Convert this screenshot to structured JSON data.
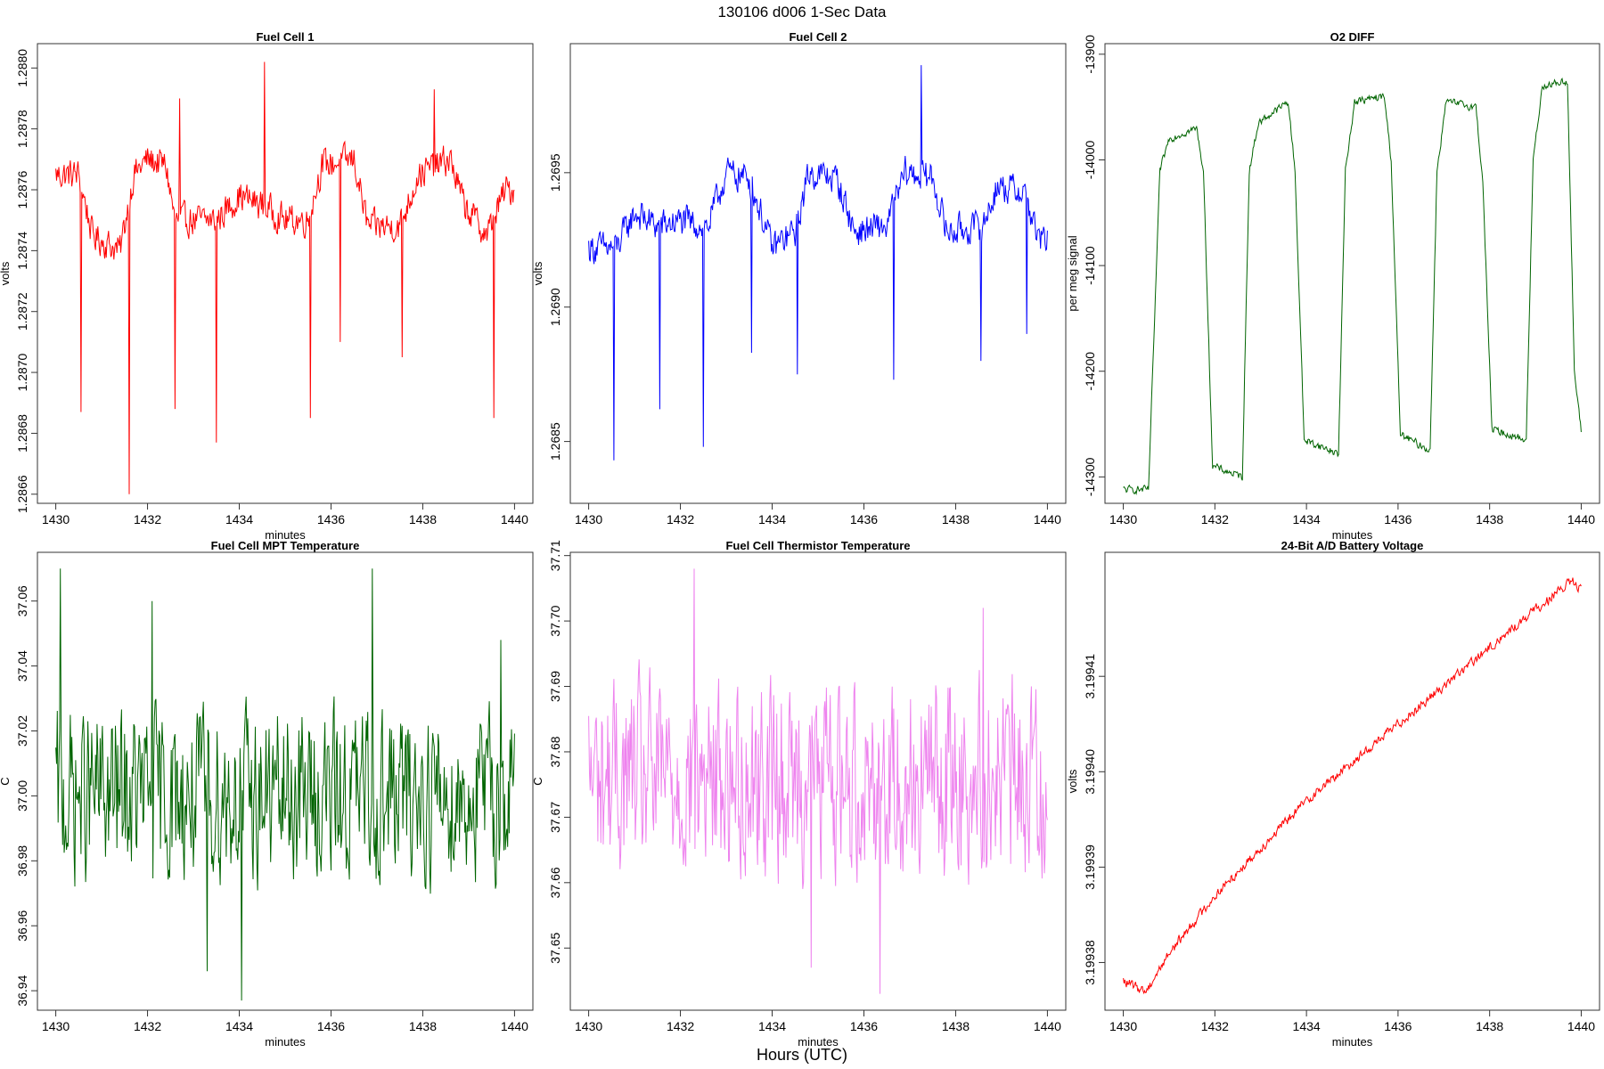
{
  "figure": {
    "title": "130106   d006   1-Sec Data",
    "bottom_xlabel": "Hours (UTC)"
  },
  "chart_data": [
    {
      "type": "line",
      "title": "Fuel Cell 1",
      "xlabel": "minutes",
      "ylabel": "volts",
      "xlim": [
        1429.6,
        1440.4
      ],
      "ylim": [
        1.28657,
        1.28808
      ],
      "xticks": [
        1430,
        1432,
        1434,
        1436,
        1438,
        1440
      ],
      "xtick_labels": [
        "1430",
        "1432",
        "1434",
        "1436",
        "1438",
        "1440"
      ],
      "yticks": [
        1.2866,
        1.2868,
        1.287,
        1.2872,
        1.2874,
        1.2876,
        1.2878,
        1.288
      ],
      "ytick_labels": [
        "1.2866",
        "1.2868",
        "1.2870",
        "1.2872",
        "1.2874",
        "1.2876",
        "1.2878",
        "1.2880"
      ],
      "color": "#ff0000",
      "series": [
        {
          "x_start": 1430,
          "x_end": 1440,
          "baseline": [
            [
              1430,
              1.28765
            ],
            [
              1430.5,
              1.28765
            ],
            [
              1430.8,
              1.28745
            ],
            [
              1431.4,
              1.2874
            ],
            [
              1431.7,
              1.28765
            ],
            [
              1432.0,
              1.2877
            ],
            [
              1432.4,
              1.28768
            ],
            [
              1432.6,
              1.2875
            ],
            [
              1433.5,
              1.2875
            ],
            [
              1434.0,
              1.28758
            ],
            [
              1434.5,
              1.28755
            ],
            [
              1435.0,
              1.2875
            ],
            [
              1435.5,
              1.2875
            ],
            [
              1435.8,
              1.28768
            ],
            [
              1436.5,
              1.2877
            ],
            [
              1436.8,
              1.28748
            ],
            [
              1437.5,
              1.28748
            ],
            [
              1437.9,
              1.28765
            ],
            [
              1438.6,
              1.2877
            ],
            [
              1438.9,
              1.28755
            ],
            [
              1439.4,
              1.28745
            ],
            [
              1439.8,
              1.2876
            ],
            [
              1440,
              1.2876
            ]
          ],
          "noise": 7e-05,
          "spikes": [
            [
              1430.55,
              1.28687
            ],
            [
              1431.6,
              1.2866
            ],
            [
              1432.6,
              1.28688
            ],
            [
              1433.5,
              1.28677
            ],
            [
              1435.55,
              1.28685
            ],
            [
              1436.2,
              1.2871
            ],
            [
              1437.55,
              1.28705
            ],
            [
              1439.55,
              1.28685
            ],
            [
              1432.7,
              1.2879
            ],
            [
              1434.55,
              1.28802
            ],
            [
              1438.25,
              1.28793
            ]
          ]
        }
      ]
    },
    {
      "type": "line",
      "title": "Fuel Cell 2",
      "xlabel": "",
      "ylabel": "volts",
      "xlim": [
        1429.6,
        1440.4
      ],
      "ylim": [
        1.26827,
        1.26998
      ],
      "xticks": [
        1430,
        1432,
        1434,
        1436,
        1438,
        1440
      ],
      "xtick_labels": [
        "1430",
        "1432",
        "1434",
        "1436",
        "1438",
        "1440"
      ],
      "yticks": [
        1.2685,
        1.269,
        1.2695
      ],
      "ytick_labels": [
        "1.2685",
        "1.2690",
        "1.2695"
      ],
      "color": "#0000ff",
      "series": [
        {
          "x_start": 1430,
          "x_end": 1440,
          "baseline": [
            [
              1430,
              1.26922
            ],
            [
              1430.6,
              1.26922
            ],
            [
              1431.0,
              1.26935
            ],
            [
              1431.5,
              1.2693
            ],
            [
              1432.0,
              1.26932
            ],
            [
              1432.6,
              1.2693
            ],
            [
              1433.0,
              1.2695
            ],
            [
              1433.5,
              1.26948
            ],
            [
              1434.0,
              1.26922
            ],
            [
              1434.5,
              1.26928
            ],
            [
              1434.8,
              1.2695
            ],
            [
              1435.4,
              1.26948
            ],
            [
              1435.8,
              1.26928
            ],
            [
              1436.5,
              1.2693
            ],
            [
              1436.9,
              1.2695
            ],
            [
              1437.5,
              1.26948
            ],
            [
              1437.8,
              1.26928
            ],
            [
              1438.6,
              1.2693
            ],
            [
              1438.9,
              1.26945
            ],
            [
              1439.5,
              1.26943
            ],
            [
              1439.8,
              1.26925
            ],
            [
              1440,
              1.26925
            ]
          ],
          "noise": 8e-05,
          "spikes": [
            [
              1430.55,
              1.26843
            ],
            [
              1431.55,
              1.26862
            ],
            [
              1432.5,
              1.26848
            ],
            [
              1433.55,
              1.26883
            ],
            [
              1434.55,
              1.26875
            ],
            [
              1436.65,
              1.26873
            ],
            [
              1438.55,
              1.2688
            ],
            [
              1439.55,
              1.2689
            ],
            [
              1437.25,
              1.2699
            ]
          ]
        }
      ]
    },
    {
      "type": "line",
      "title": "O2 DIFF",
      "xlabel": "minutes",
      "ylabel": "per meg signal",
      "xlim": [
        1429.6,
        1440.4
      ],
      "ylim": [
        -14325,
        -13890
      ],
      "xticks": [
        1430,
        1432,
        1434,
        1436,
        1438,
        1440
      ],
      "xtick_labels": [
        "1430",
        "1432",
        "1434",
        "1436",
        "1438",
        "1440"
      ],
      "yticks": [
        -14300,
        -14200,
        -14100,
        -14000,
        -13900
      ],
      "ytick_labels": [
        "-14300",
        "-14200",
        "-14100",
        "-14000",
        "-13900"
      ],
      "color": "#006400",
      "series": [
        {
          "x_start": 1430,
          "x_end": 1440,
          "baseline": [
            [
              1430,
              -14312
            ],
            [
              1430.55,
              -14312
            ],
            [
              1430.8,
              -14010
            ],
            [
              1431.0,
              -13980
            ],
            [
              1431.6,
              -13970
            ],
            [
              1431.75,
              -14010
            ],
            [
              1431.95,
              -14290
            ],
            [
              1432.6,
              -14300
            ],
            [
              1432.75,
              -14010
            ],
            [
              1432.95,
              -13965
            ],
            [
              1433.6,
              -13945
            ],
            [
              1433.75,
              -14010
            ],
            [
              1433.95,
              -14265
            ],
            [
              1434.7,
              -14278
            ],
            [
              1434.85,
              -14010
            ],
            [
              1435.05,
              -13945
            ],
            [
              1435.7,
              -13940
            ],
            [
              1435.85,
              -14000
            ],
            [
              1436.05,
              -14260
            ],
            [
              1436.7,
              -14275
            ],
            [
              1436.85,
              -14010
            ],
            [
              1437.05,
              -13945
            ],
            [
              1437.7,
              -13950
            ],
            [
              1437.85,
              -14020
            ],
            [
              1438.05,
              -14255
            ],
            [
              1438.8,
              -14265
            ],
            [
              1438.95,
              -14000
            ],
            [
              1439.15,
              -13930
            ],
            [
              1439.7,
              -13925
            ],
            [
              1439.85,
              -14200
            ],
            [
              1440,
              -14258
            ]
          ],
          "noise": 5,
          "spikes": []
        }
      ]
    },
    {
      "type": "line",
      "title": "Fuel Cell MPT Temperature",
      "xlabel": "minutes",
      "ylabel": "C",
      "xlim": [
        1429.6,
        1440.4
      ],
      "ylim": [
        36.934,
        37.075
      ],
      "xticks": [
        1430,
        1432,
        1434,
        1436,
        1438,
        1440
      ],
      "xtick_labels": [
        "1430",
        "1432",
        "1434",
        "1436",
        "1438",
        "1440"
      ],
      "yticks": [
        36.94,
        36.96,
        36.98,
        37.0,
        37.02,
        37.04,
        37.06
      ],
      "ytick_labels": [
        "36.94",
        "36.96",
        "36.98",
        "37.00",
        "37.02",
        "37.04",
        "37.06"
      ],
      "color": "#006400",
      "series": [
        {
          "x_start": 1430,
          "x_end": 1440,
          "baseline": [
            [
              1430,
              37.0
            ],
            [
              1440,
              37.0
            ]
          ],
          "noise": 0.035,
          "spikes": [
            [
              1430.1,
              37.07
            ],
            [
              1436.9,
              37.07
            ],
            [
              1434.05,
              36.937
            ],
            [
              1433.3,
              36.946
            ],
            [
              1432.1,
              37.06
            ],
            [
              1439.7,
              37.048
            ]
          ]
        }
      ]
    },
    {
      "type": "line",
      "title": "Fuel Cell Thermistor Temperature",
      "xlabel": "minutes",
      "ylabel": "C",
      "xlim": [
        1429.6,
        1440.4
      ],
      "ylim": [
        37.6405,
        37.7105
      ],
      "xticks": [
        1430,
        1432,
        1434,
        1436,
        1438,
        1440
      ],
      "xtick_labels": [
        "1430",
        "1432",
        "1434",
        "1436",
        "1438",
        "1440"
      ],
      "yticks": [
        37.65,
        37.66,
        37.67,
        37.68,
        37.69,
        37.7,
        37.71
      ],
      "ytick_labels": [
        "37.65",
        "37.66",
        "37.67",
        "37.68",
        "37.69",
        "37.70",
        "37.71"
      ],
      "color": "#ee82ee",
      "series": [
        {
          "x_start": 1430,
          "x_end": 1440,
          "baseline": [
            [
              1430,
              37.676
            ],
            [
              1440,
              37.676
            ]
          ],
          "noise": 0.02,
          "spikes": [
            [
              1432.3,
              37.708
            ],
            [
              1436.35,
              37.643
            ],
            [
              1434.85,
              37.647
            ],
            [
              1438.6,
              37.702
            ]
          ]
        }
      ]
    },
    {
      "type": "line",
      "title": "24-Bit A/D Battery Voltage",
      "xlabel": "minutes",
      "ylabel": "volts",
      "xlim": [
        1429.6,
        1440.4
      ],
      "ylim": [
        3.199375,
        3.199423
      ],
      "xticks": [
        1430,
        1432,
        1434,
        1436,
        1438,
        1440
      ],
      "xtick_labels": [
        "1430",
        "1432",
        "1434",
        "1436",
        "1438",
        "1440"
      ],
      "yticks": [
        3.19938,
        3.19939,
        3.1994,
        3.19941
      ],
      "ytick_labels": [
        "3.19938",
        "3.19939",
        "3.19940",
        "3.19941"
      ],
      "color": "#ff0000",
      "series": [
        {
          "x_start": 1430,
          "x_end": 1440,
          "baseline": [
            [
              1430,
              3.199378
            ],
            [
              1430.5,
              3.199377
            ],
            [
              1431.0,
              3.199381
            ],
            [
              1432.0,
              3.199387
            ],
            [
              1433.0,
              3.199392
            ],
            [
              1434.0,
              3.199397
            ],
            [
              1435.0,
              3.199401
            ],
            [
              1436.0,
              3.199405
            ],
            [
              1437.0,
              3.199409
            ],
            [
              1438.0,
              3.199413
            ],
            [
              1439.0,
              3.199417
            ],
            [
              1439.8,
              3.19942
            ],
            [
              1440,
              3.199419
            ]
          ],
          "noise": 7e-07,
          "spikes": []
        }
      ]
    }
  ]
}
